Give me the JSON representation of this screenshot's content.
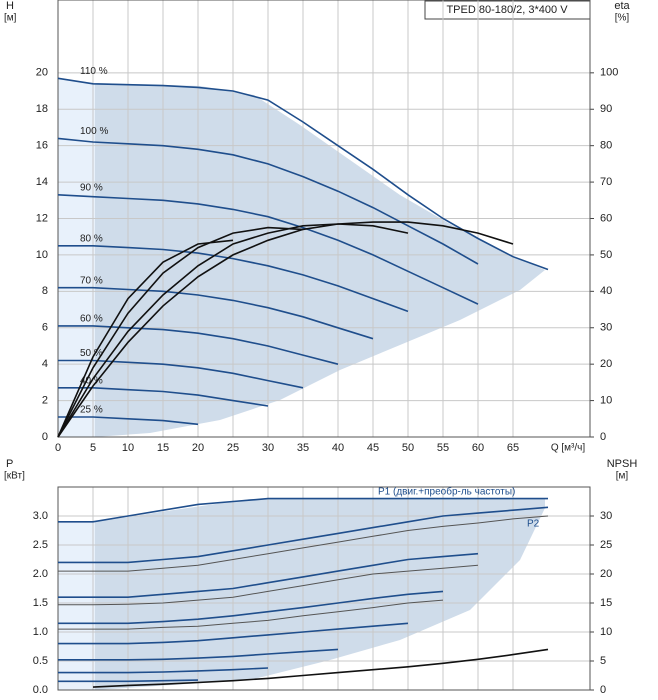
{
  "chart_data": [
    {
      "type": "line",
      "title": "TPED 80-180/2, 3*400 V",
      "ylabel": "H",
      "yunit": "[м]",
      "y2label": "eta",
      "y2unit": "[%]",
      "xlabel": "Q [м³/ч]",
      "x": [
        0,
        5,
        10,
        15,
        20,
        25,
        30,
        35,
        40,
        45,
        50,
        55,
        60,
        65,
        70
      ],
      "xlim": [
        0,
        76
      ],
      "xticks": [
        0,
        5,
        10,
        15,
        20,
        25,
        30,
        35,
        40,
        45,
        50,
        55,
        60,
        65
      ],
      "ylim": [
        0,
        24
      ],
      "yticks": [
        0,
        2,
        4,
        6,
        8,
        10,
        12,
        14,
        16,
        18,
        20
      ],
      "y2lim": [
        0,
        120
      ],
      "y2ticks": [
        0,
        10,
        20,
        30,
        40,
        50,
        60,
        70,
        80,
        90,
        100
      ],
      "grid": true,
      "series": [
        {
          "name": "110 %",
          "color": "#1f4e8c",
          "values": [
            19.7,
            19.4,
            19.35,
            19.3,
            19.2,
            19.0,
            18.5,
            17.3,
            16.0,
            14.7,
            13.3,
            12.0,
            10.9,
            9.9,
            9.2
          ]
        },
        {
          "name": "100 %",
          "color": "#1f4e8c",
          "values": [
            16.4,
            16.2,
            16.1,
            16.0,
            15.8,
            15.5,
            15.0,
            14.3,
            13.5,
            12.6,
            11.6,
            10.6,
            9.5,
            null,
            null
          ]
        },
        {
          "name": "90 %",
          "color": "#1f4e8c",
          "values": [
            13.3,
            13.2,
            13.1,
            13.0,
            12.8,
            12.5,
            12.1,
            11.5,
            10.8,
            10.0,
            9.1,
            8.2,
            7.3,
            null,
            null
          ]
        },
        {
          "name": "80 %",
          "color": "#1f4e8c",
          "values": [
            10.5,
            10.5,
            10.4,
            10.3,
            10.1,
            9.8,
            9.4,
            8.9,
            8.3,
            7.6,
            6.9,
            null,
            null,
            null,
            null
          ]
        },
        {
          "name": "70 %",
          "color": "#1f4e8c",
          "values": [
            8.2,
            8.2,
            8.1,
            8.0,
            7.8,
            7.5,
            7.1,
            6.6,
            6.0,
            5.4,
            null,
            null,
            null,
            null,
            null
          ]
        },
        {
          "name": "60 %",
          "color": "#1f4e8c",
          "values": [
            6.1,
            6.1,
            6.0,
            5.9,
            5.7,
            5.4,
            5.0,
            4.5,
            4.0,
            null,
            null,
            null,
            null,
            null,
            null
          ]
        },
        {
          "name": "50 %",
          "color": "#1f4e8c",
          "values": [
            4.2,
            4.2,
            4.1,
            4.0,
            3.8,
            3.5,
            3.1,
            2.7,
            null,
            null,
            null,
            null,
            null,
            null,
            null
          ]
        },
        {
          "name": "40 %",
          "color": "#1f4e8c",
          "values": [
            2.7,
            2.7,
            2.6,
            2.5,
            2.3,
            2.0,
            1.7,
            null,
            null,
            null,
            null,
            null,
            null,
            null,
            null
          ]
        },
        {
          "name": "25 %",
          "color": "#1f4e8c",
          "values": [
            1.1,
            1.1,
            1.0,
            0.9,
            0.7,
            null,
            null,
            null,
            null,
            null,
            null,
            null,
            null,
            null,
            null
          ]
        },
        {
          "color": "#111111",
          "axis": "y2",
          "values": [
            0,
            14,
            26,
            36,
            44,
            50,
            54,
            57,
            58.5,
            59,
            59,
            58,
            56,
            53,
            null
          ]
        },
        {
          "color": "#111111",
          "axis": "y2",
          "values": [
            0,
            16,
            29,
            39,
            47,
            53,
            56,
            58,
            58.5,
            58,
            56,
            null,
            null,
            null,
            null
          ]
        },
        {
          "color": "#111111",
          "axis": "y2",
          "values": [
            0,
            19,
            34,
            45,
            52,
            56,
            57.5,
            57,
            null,
            null,
            null,
            null,
            null,
            null,
            null
          ]
        },
        {
          "color": "#111111",
          "axis": "y2",
          "values": [
            0,
            22,
            38,
            48,
            53,
            54,
            null,
            null,
            null,
            null,
            null,
            null,
            null,
            null,
            null
          ]
        }
      ]
    },
    {
      "type": "line",
      "ylabel": "P",
      "yunit": "[кВт]",
      "y2label": "NPSH",
      "y2unit": "[м]",
      "annotations": [
        "P1 (двиг.+преобр-ль частоты)",
        "P2"
      ],
      "x": [
        0,
        5,
        10,
        15,
        20,
        25,
        30,
        35,
        40,
        45,
        50,
        55,
        60,
        65,
        70
      ],
      "xlim": [
        0,
        76
      ],
      "xticks": [
        0,
        5,
        10,
        15,
        20,
        25,
        30,
        35,
        40,
        45,
        50,
        55,
        60,
        65
      ],
      "ylim": [
        0,
        3.5
      ],
      "yticks": [
        {
          "value": 0,
          "label": "0.0"
        },
        0.5,
        {
          "value": 1,
          "label": "1.0"
        },
        1.5,
        {
          "value": 2,
          "label": "2.0"
        },
        2.5,
        {
          "value": 3,
          "label": "3.0"
        }
      ],
      "y2lim": [
        0,
        35
      ],
      "y2ticks": [
        0,
        5,
        10,
        15,
        20,
        25,
        30
      ],
      "grid": true,
      "series": [
        {
          "color": "#1f4e8c",
          "values": [
            2.9,
            2.9,
            3.0,
            3.1,
            3.2,
            3.25,
            3.3,
            3.3,
            3.3,
            3.3,
            3.3,
            3.3,
            3.3,
            3.3,
            3.3
          ]
        },
        {
          "color": "#1f4e8c",
          "values": [
            2.2,
            2.2,
            2.2,
            2.25,
            2.3,
            2.4,
            2.5,
            2.6,
            2.7,
            2.8,
            2.9,
            3.0,
            3.05,
            3.1,
            3.15
          ]
        },
        {
          "color": "#555555",
          "values": [
            2.05,
            2.05,
            2.05,
            2.1,
            2.15,
            2.25,
            2.35,
            2.45,
            2.55,
            2.65,
            2.75,
            2.82,
            2.88,
            2.95,
            3.0
          ]
        },
        {
          "color": "#1f4e8c",
          "values": [
            1.6,
            1.6,
            1.6,
            1.65,
            1.7,
            1.75,
            1.85,
            1.95,
            2.05,
            2.15,
            2.25,
            2.3,
            2.35,
            null,
            null
          ]
        },
        {
          "color": "#555555",
          "values": [
            1.47,
            1.47,
            1.48,
            1.5,
            1.55,
            1.6,
            1.7,
            1.8,
            1.9,
            2.0,
            2.05,
            2.1,
            2.15,
            null,
            null
          ]
        },
        {
          "color": "#1f4e8c",
          "values": [
            1.15,
            1.15,
            1.15,
            1.18,
            1.22,
            1.28,
            1.35,
            1.42,
            1.5,
            1.58,
            1.65,
            1.7,
            null,
            null,
            null
          ]
        },
        {
          "color": "#555555",
          "values": [
            1.05,
            1.05,
            1.05,
            1.08,
            1.1,
            1.15,
            1.2,
            1.28,
            1.35,
            1.42,
            1.5,
            1.55,
            null,
            null,
            null
          ]
        },
        {
          "color": "#1f4e8c",
          "values": [
            0.8,
            0.8,
            0.8,
            0.82,
            0.85,
            0.9,
            0.95,
            1.0,
            1.05,
            1.1,
            1.15,
            null,
            null,
            null,
            null
          ]
        },
        {
          "color": "#1f4e8c",
          "values": [
            0.52,
            0.52,
            0.52,
            0.53,
            0.55,
            0.58,
            0.62,
            0.66,
            0.7,
            null,
            null,
            null,
            null,
            null,
            null
          ]
        },
        {
          "color": "#1f4e8c",
          "values": [
            0.3,
            0.3,
            0.3,
            0.31,
            0.33,
            0.35,
            0.38,
            null,
            null,
            null,
            null,
            null,
            null,
            null,
            null
          ]
        },
        {
          "color": "#1f4e8c",
          "values": [
            0.15,
            0.15,
            0.15,
            0.16,
            0.17,
            null,
            null,
            null,
            null,
            null,
            null,
            null,
            null,
            null,
            null
          ]
        },
        {
          "color": "#111111",
          "axis": "y2",
          "values": [
            null,
            0.5,
            0.8,
            1.0,
            1.3,
            1.6,
            2,
            2.5,
            3,
            3.5,
            4,
            4.6,
            5.3,
            6.1,
            7
          ]
        }
      ]
    }
  ]
}
